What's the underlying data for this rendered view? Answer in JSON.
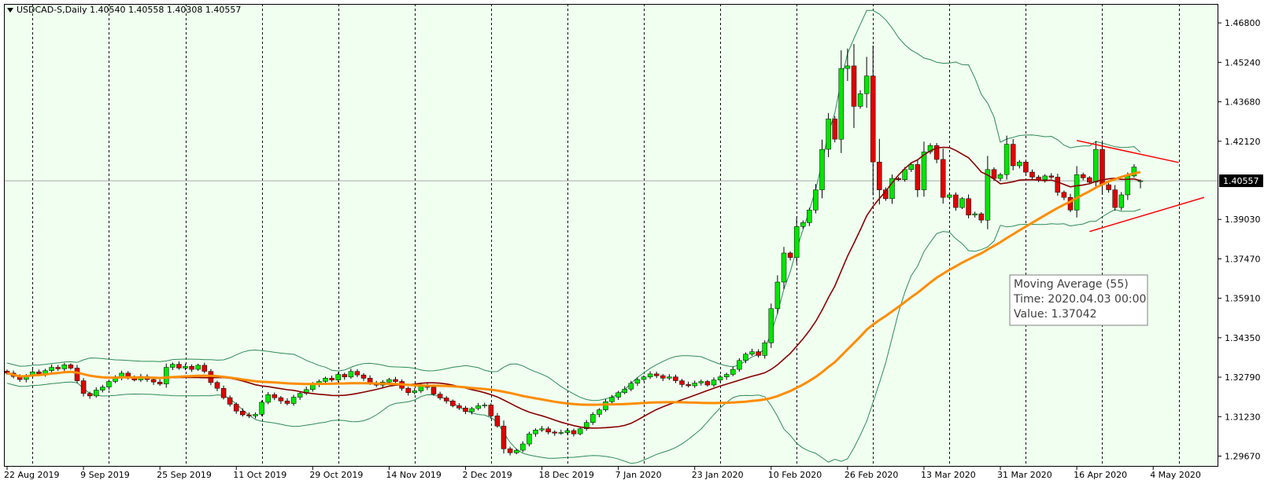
{
  "colors": {
    "background": "#ffffff",
    "plot_background": "#f0fff0",
    "frame": "#000000",
    "bull_candle": "#00e600",
    "bear_candle": "#e00000",
    "wick": "#000000",
    "bollinger": "#2e8b57",
    "ma_short": "#8b0000",
    "ma_long": "#ff8c00",
    "trendline": "#ff0000",
    "price_line": "#a9a9a9",
    "price_label_bg": "#000000",
    "price_label_text": "#ffffff",
    "tooltip_bg": "#ffffff",
    "tooltip_border": "#808080",
    "tooltip_text": "#404040"
  },
  "header": {
    "menu_icon": "triangle-down-icon",
    "title": "USDCAD-S,Daily  1.40540 1.40558 1.40308 1.40557"
  },
  "tooltip": {
    "line1": "Moving Average (55)",
    "line2": "Time: 2020.04.03 00:00",
    "line3": "Value: 1.37042"
  },
  "chart_data": {
    "type": "candlestick",
    "symbol": "USDCAD-S",
    "timeframe": "Daily",
    "ohlc_header": {
      "open": 1.4054,
      "high": 1.40558,
      "low": 1.40308,
      "close": 1.40557
    },
    "current_price": "1.40557",
    "y_ticks": [
      "1.46800",
      "1.45240",
      "1.43680",
      "1.42120",
      "1.39030",
      "1.37470",
      "1.35910",
      "1.34350",
      "1.32790",
      "1.31230",
      "1.29670"
    ],
    "ylim": [
      1.2925,
      1.4755
    ],
    "x_ticks": [
      {
        "label": "22 Aug 2019",
        "bar": 0
      },
      {
        "label": "9 Sep 2019",
        "bar": 12
      },
      {
        "label": "25 Sep 2019",
        "bar": 24
      },
      {
        "label": "11 Oct 2019",
        "bar": 36
      },
      {
        "label": "29 Oct 2019",
        "bar": 48
      },
      {
        "label": "14 Nov 2019",
        "bar": 60
      },
      {
        "label": "2 Dec 2019",
        "bar": 72
      },
      {
        "label": "18 Dec 2019",
        "bar": 84
      },
      {
        "label": "7 Jan 2020",
        "bar": 96
      },
      {
        "label": "23 Jan 2020",
        "bar": 108
      },
      {
        "label": "10 Feb 2020",
        "bar": 120
      },
      {
        "label": "26 Feb 2020",
        "bar": 132
      },
      {
        "label": "13 Mar 2020",
        "bar": 144
      },
      {
        "label": "31 Mar 2020",
        "bar": 156
      },
      {
        "label": "16 Apr 2020",
        "bar": 168
      },
      {
        "label": "4 May 2020",
        "bar": 180
      }
    ],
    "separators": [
      4,
      16,
      28,
      40,
      52,
      64,
      76,
      88,
      100,
      112,
      124,
      136,
      148,
      160,
      172,
      184
    ],
    "closes": [
      1.3295,
      1.3282,
      1.327,
      1.3285,
      1.33,
      1.3292,
      1.3305,
      1.3318,
      1.3312,
      1.3328,
      1.3315,
      1.3265,
      1.3215,
      1.3205,
      1.3228,
      1.324,
      1.3262,
      1.3275,
      1.3295,
      1.328,
      1.3268,
      1.3282,
      1.327,
      1.326,
      1.3252,
      1.3318,
      1.333,
      1.3315,
      1.3322,
      1.331,
      1.3326,
      1.3302,
      1.3258,
      1.3235,
      1.3198,
      1.3172,
      1.3145,
      1.313,
      1.3126,
      1.3132,
      1.318,
      1.321,
      1.3198,
      1.3185,
      1.3175,
      1.32,
      1.3215,
      1.323,
      1.325,
      1.3262,
      1.3275,
      1.3268,
      1.329,
      1.328,
      1.3302,
      1.3288,
      1.3275,
      1.3255,
      1.3248,
      1.326,
      1.327,
      1.3262,
      1.3235,
      1.3218,
      1.3225,
      1.3247,
      1.3239,
      1.3212,
      1.3197,
      1.3185,
      1.3166,
      1.3157,
      1.3143,
      1.3155,
      1.3166,
      1.3169,
      1.3126,
      1.3086,
      1.2996,
      1.298,
      1.299,
      1.3015,
      1.3055,
      1.307,
      1.3075,
      1.3062,
      1.3058,
      1.306,
      1.3068,
      1.3055,
      1.3075,
      1.31,
      1.3132,
      1.315,
      1.3182,
      1.32,
      1.3218,
      1.3232,
      1.3255,
      1.327,
      1.328,
      1.3292,
      1.3285,
      1.3275,
      1.328,
      1.3265,
      1.325,
      1.3245,
      1.3256,
      1.3262,
      1.3248,
      1.3268,
      1.328,
      1.329,
      1.331,
      1.3345,
      1.337,
      1.338,
      1.3365,
      1.3415,
      1.355,
      1.3655,
      1.377,
      1.3752,
      1.3875,
      1.389,
      1.394,
      1.402,
      1.418,
      1.43,
      1.422,
      1.45,
      1.451,
      1.435,
      1.44,
      1.447,
      1.413,
      1.402,
      1.3985,
      1.4065,
      1.406,
      1.41,
      1.412,
      1.402,
      1.417,
      1.4195,
      1.414,
      1.399,
      1.4,
      1.395,
      1.3985,
      1.392,
      1.3925,
      1.39,
      1.41,
      1.4065,
      1.408,
      1.42,
      1.4115,
      1.413,
      1.409,
      1.407,
      1.406,
      1.4075,
      1.407,
      1.401,
      1.399,
      1.394,
      1.408,
      1.4068,
      1.405,
      1.418,
      1.404,
      1.402,
      1.395,
      1.4,
      1.4075,
      1.411,
      1.4056
    ],
    "ma_short_period": 21,
    "ma_long_period": 55,
    "bollinger_period": 21,
    "trendlines": [
      {
        "from": [
          168,
          1.4215
        ],
        "to": [
          184,
          1.4128
        ]
      },
      {
        "from": [
          170,
          1.3855
        ],
        "to": [
          188,
          1.399
        ]
      }
    ],
    "tooltip_at_bar": 158
  }
}
